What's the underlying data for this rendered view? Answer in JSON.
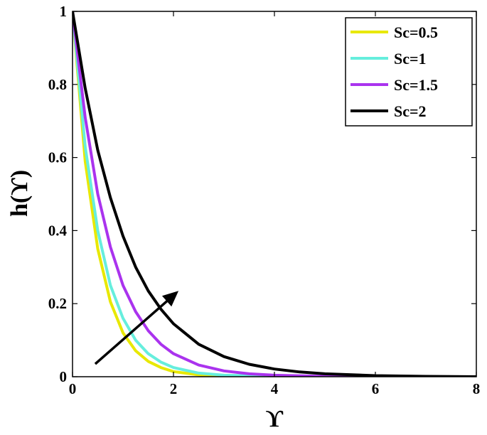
{
  "chart_data": {
    "type": "line",
    "title": "",
    "xlabel": "ϒ",
    "ylabel": "h(ϒ)",
    "xlim": [
      0,
      8
    ],
    "ylim": [
      0,
      1
    ],
    "xticks": [
      "0",
      "2",
      "4",
      "6",
      "8"
    ],
    "yticks": [
      "0",
      "0.2",
      "0.4",
      "0.6",
      "0.8",
      "1"
    ],
    "grid": false,
    "legend_position": "top-right",
    "annotation": "arrow indicating increasing Sc",
    "series": [
      {
        "name": "Sc=0.5",
        "color": "#e8e800",
        "x": [
          0,
          0.25,
          0.5,
          0.75,
          1,
          1.25,
          1.5,
          1.75,
          2,
          2.5,
          3,
          4,
          5,
          6,
          7,
          8
        ],
        "y": [
          1,
          0.59,
          0.35,
          0.205,
          0.12,
          0.071,
          0.042,
          0.025,
          0.014,
          0.005,
          0.002,
          0,
          0,
          0,
          0,
          0
        ]
      },
      {
        "name": "Sc=1",
        "color": "#66eedd",
        "x": [
          0,
          0.25,
          0.5,
          0.75,
          1,
          1.25,
          1.5,
          1.75,
          2,
          2.5,
          3,
          4,
          5,
          6,
          7,
          8
        ],
        "y": [
          1,
          0.63,
          0.4,
          0.25,
          0.16,
          0.1,
          0.063,
          0.04,
          0.025,
          0.01,
          0.004,
          0.001,
          0,
          0,
          0,
          0
        ]
      },
      {
        "name": "Sc=1.5",
        "color": "#aa33ee",
        "x": [
          0,
          0.25,
          0.5,
          0.75,
          1,
          1.25,
          1.5,
          1.75,
          2,
          2.5,
          3,
          3.5,
          4,
          5,
          6,
          7,
          8
        ],
        "y": [
          1,
          0.71,
          0.5,
          0.355,
          0.25,
          0.178,
          0.126,
          0.089,
          0.063,
          0.032,
          0.016,
          0.008,
          0.004,
          0.001,
          0,
          0,
          0
        ]
      },
      {
        "name": "Sc=2",
        "color": "#000000",
        "x": [
          0,
          0.25,
          0.5,
          0.75,
          1,
          1.25,
          1.5,
          1.75,
          2,
          2.5,
          3,
          3.5,
          4,
          4.5,
          5,
          6,
          7,
          8
        ],
        "y": [
          1,
          0.79,
          0.62,
          0.49,
          0.385,
          0.3,
          0.235,
          0.185,
          0.145,
          0.089,
          0.055,
          0.034,
          0.021,
          0.013,
          0.008,
          0.003,
          0.001,
          0
        ]
      }
    ]
  }
}
